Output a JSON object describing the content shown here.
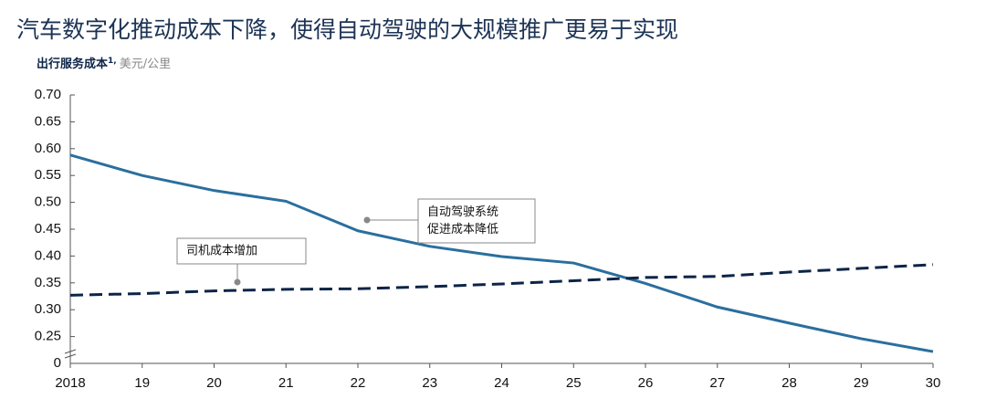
{
  "chart_data": {
    "type": "line",
    "title": "汽车数字化推动成本下降，使得自动驾驶的大规模推广更易于实现",
    "y_label": "出行服务成本",
    "y_label_footnote": "1,",
    "y_unit": "美元/公里",
    "categories": [
      "2018",
      "19",
      "20",
      "21",
      "22",
      "23",
      "24",
      "25",
      "26",
      "27",
      "28",
      "29",
      "30"
    ],
    "series": [
      {
        "color": "#2a6f9e",
        "style": "solid",
        "values": [
          0.588,
          0.55,
          0.522,
          0.502,
          0.447,
          0.418,
          0.399,
          0.387,
          0.349,
          0.305,
          0.275,
          0.246,
          0.222
        ]
      },
      {
        "color": "#0d2447",
        "style": "dashed",
        "values": [
          0.327,
          0.33,
          0.335,
          0.338,
          0.339,
          0.343,
          0.348,
          0.354,
          0.36,
          0.362,
          0.37,
          0.377,
          0.384
        ]
      }
    ],
    "ylim": [
      0,
      0.7
    ],
    "axis_break": [
      0,
      0.2
    ],
    "yticks": [
      {
        "value": 0,
        "label": "0"
      },
      {
        "value": 0.25,
        "label": "0.25"
      },
      {
        "value": 0.3,
        "label": "0.30"
      },
      {
        "value": 0.35,
        "label": "0.35"
      },
      {
        "value": 0.4,
        "label": "0.40"
      },
      {
        "value": 0.45,
        "label": "0.45"
      },
      {
        "value": 0.5,
        "label": "0.50"
      },
      {
        "value": 0.55,
        "label": "0.55"
      },
      {
        "value": 0.6,
        "label": "0.60"
      },
      {
        "value": 0.65,
        "label": "0.65"
      },
      {
        "value": 0.7,
        "label": "0.70"
      }
    ],
    "annotations": [
      {
        "lines": [
          "自动驾驶系统",
          "促进成本降低"
        ]
      },
      {
        "lines": [
          "司机成本增加"
        ]
      }
    ],
    "grid": false
  }
}
